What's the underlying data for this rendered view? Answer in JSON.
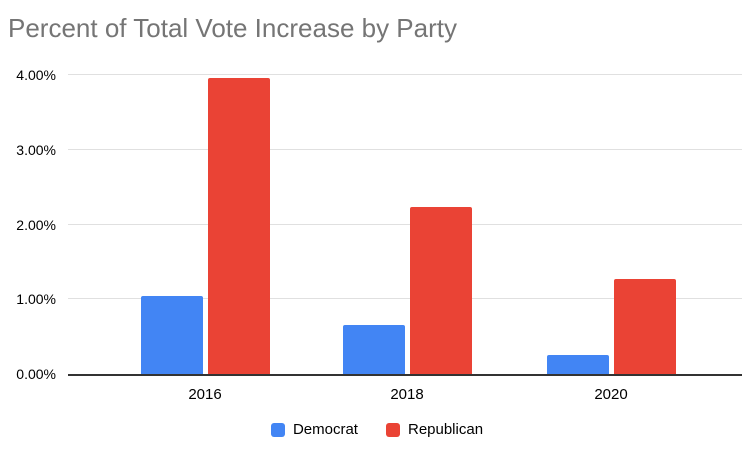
{
  "chart_data": {
    "type": "bar",
    "title": "Percent of Total Vote Increase by Party",
    "categories": [
      "2016",
      "2018",
      "2020"
    ],
    "series": [
      {
        "name": "Democrat",
        "color": "#4285F4",
        "values": [
          1.05,
          0.66,
          0.25
        ]
      },
      {
        "name": "Republican",
        "color": "#EA4335",
        "values": [
          3.96,
          2.24,
          1.27
        ]
      }
    ],
    "xlabel": "",
    "ylabel": "",
    "ylim": [
      0,
      4
    ],
    "yticks": [
      {
        "label": "0.00%",
        "value": 0
      },
      {
        "label": "1.00%",
        "value": 1
      },
      {
        "label": "2.00%",
        "value": 2
      },
      {
        "label": "3.00%",
        "value": 3
      },
      {
        "label": "4.00%",
        "value": 4
      }
    ],
    "grid": true,
    "legend_position": "bottom"
  },
  "colors": {
    "title_text": "#757575",
    "axis_text": "#000000",
    "gridline": "#E0E0E0",
    "baseline": "#333333",
    "background": "#FFFFFF"
  }
}
